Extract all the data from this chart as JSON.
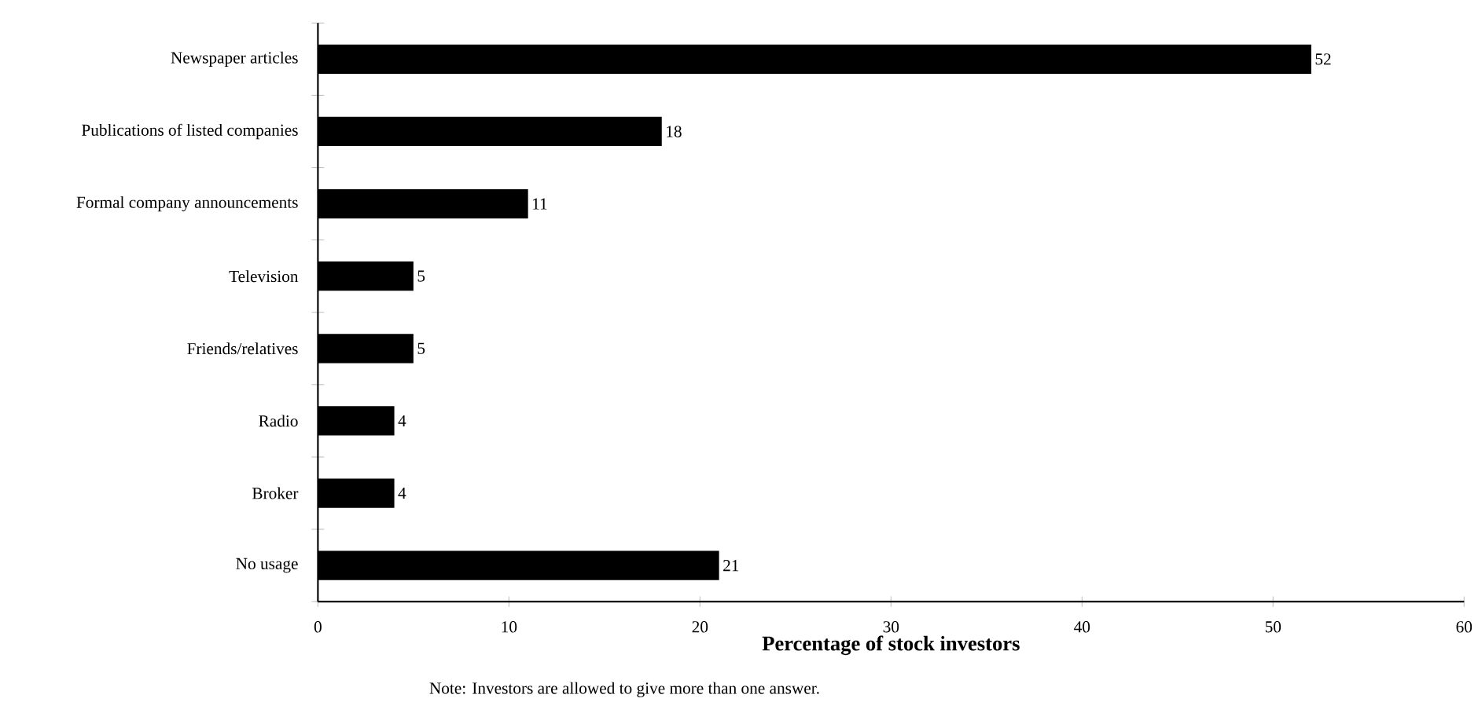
{
  "chart_data": {
    "type": "bar",
    "orientation": "horizontal",
    "xlabel": "Percentage of stock investors",
    "categories": [
      "Newspaper articles",
      "Publications of listed companies",
      "Formal company announcements",
      "Television",
      "Friends/relatives",
      "Radio",
      "Broker",
      "No usage"
    ],
    "values": [
      52,
      18,
      11,
      5,
      5,
      4,
      4,
      21
    ],
    "color": "#000000",
    "data_labels": true,
    "xlim": [
      0,
      60
    ],
    "xticks": [
      0,
      10,
      20,
      30,
      40,
      50,
      60
    ],
    "grid": false,
    "annotations": [
      "Note: Investors are allowed to give more than one answer."
    ]
  }
}
